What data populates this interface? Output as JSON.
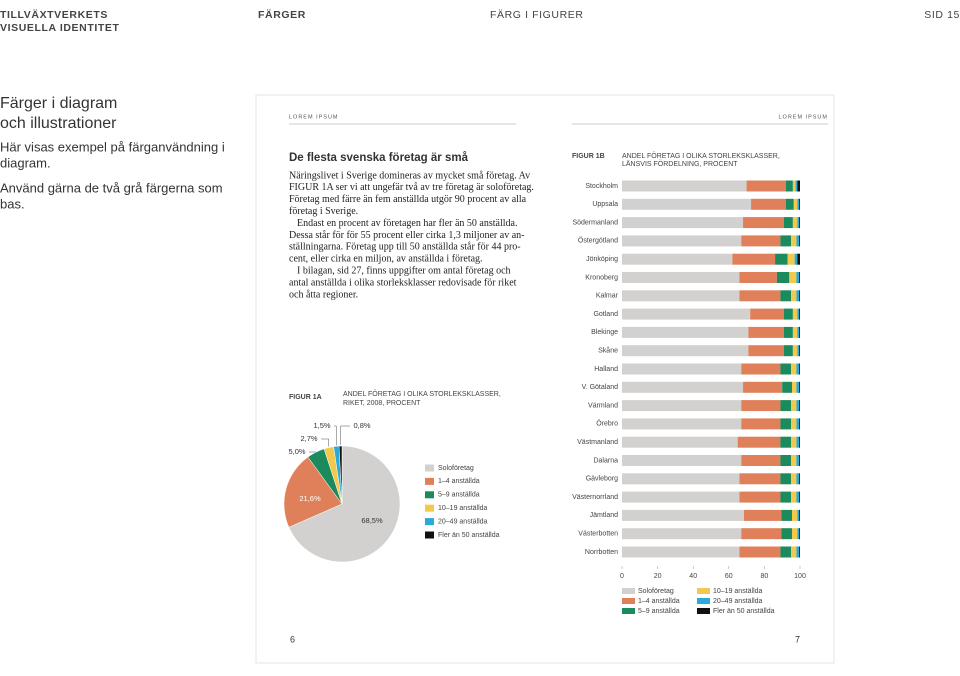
{
  "header": {
    "brand": [
      "TILLVÄXTVERKETS",
      "VISUELLA IDENTITET"
    ],
    "section": "FÄRGER",
    "subsection": "FÄRG I FIGURER",
    "page": "SID 15"
  },
  "intro": {
    "title": [
      "Färger i diagram",
      "och illustrationer"
    ],
    "paragraphs": [
      [
        "Här visas exempel på färganvändning i",
        "diagram."
      ],
      [
        "Använd gärna de två grå färgerna som",
        "bas."
      ]
    ]
  },
  "spread": {
    "running_heads": [
      "LOREM IPSUM",
      "LOREM IPSUM"
    ],
    "article": {
      "title": "De flesta svenska företag är små",
      "paragraphs": [
        [
          "Näringslivet i Sverige domineras av mycket små företag. Av",
          "FIGUR 1A ser vi att ungefär två av tre företag är soloföretag.",
          "Företag med färre än fem anställda utgör 90 procent av alla",
          "företag i Sverige."
        ],
        [
          "Endast en procent av företagen har fler än 50 anställda.",
          "Dessa står för för 55 procent eller cirka 1,3 miljoner av an-",
          "ställningarna. Företag upp till 50 anställda står för 44 pro-",
          "cent, eller cirka en miljon, av anställda i företag."
        ],
        [
          "I bilagan, sid 27, finns uppgifter om antal företag och",
          "antal anställda i olika storleksklasser redovisade för riket",
          "och åtta regioner."
        ]
      ]
    },
    "page_numbers": [
      "6",
      "7"
    ]
  },
  "chart_data": [
    {
      "type": "pie",
      "label": "FIGUR 1A",
      "title": [
        "ANDEL FÖRETAG I OLIKA STORLEKSKLASSER,",
        "RIKET, 2008, PROCENT"
      ],
      "categories": [
        "Soloföretag",
        "1–4 anställda",
        "5–9 anställda",
        "10–19 anställda",
        "20–49 anställda",
        "Fler än 50 anställda"
      ],
      "values": [
        68.5,
        21.6,
        5.0,
        2.7,
        1.5,
        0.8
      ],
      "value_labels": [
        "68,5%",
        "21,6%",
        "5,0%",
        "2,7%",
        "1,5%",
        "0,8%"
      ],
      "colors": [
        "#d2d1d0",
        "#e0805a",
        "#1b8a5c",
        "#f2c94c",
        "#2aaad8",
        "#111111"
      ]
    },
    {
      "type": "stacked-bar",
      "label": "FIGUR 1B",
      "title": [
        "ANDEL FÖRETAG I OLIKA STORLEKSKLASSER,",
        "LÄNSVIS FÖRDELNING, PROCENT"
      ],
      "categories": [
        "Stockholm",
        "Uppsala",
        "Södermanland",
        "Östergötland",
        "Jönköping",
        "Kronoberg",
        "Kalmar",
        "Gotland",
        "Blekinge",
        "Skåne",
        "Halland",
        "V. Götaland",
        "Värmland",
        "Örebro",
        "Västmanland",
        "Dalarna",
        "Gävleborg",
        "Västernorrland",
        "Jämtland",
        "Västerbotten",
        "Norrbotten"
      ],
      "series": [
        {
          "name": "Soloföretag",
          "color": "#d2d1d0",
          "values": [
            70,
            72.5,
            68,
            67,
            62,
            66,
            66,
            72,
            71,
            71,
            67,
            68,
            67,
            67,
            65,
            67,
            66,
            66,
            68.5,
            67,
            66
          ]
        },
        {
          "name": "1–4 anställda",
          "color": "#e0805a",
          "values": [
            22,
            19.5,
            23,
            22,
            24,
            21,
            23,
            19,
            20,
            20,
            22,
            22,
            22,
            22,
            24,
            22,
            23,
            23,
            21,
            22.5,
            23
          ]
        },
        {
          "name": "5–9 anställda",
          "color": "#1b8a5c",
          "values": [
            4,
            4.5,
            5,
            6,
            7,
            7,
            6,
            5,
            5,
            5,
            6,
            5.5,
            6,
            6,
            6,
            6,
            6,
            6,
            6,
            6,
            6
          ]
        },
        {
          "name": "10–19 anställda",
          "color": "#f2c94c",
          "values": [
            1.5,
            2,
            2.5,
            3,
            4,
            4,
            3,
            2.5,
            2.5,
            2.5,
            3,
            2.5,
            3,
            3,
            3,
            3,
            3,
            3,
            3,
            3,
            3
          ]
        },
        {
          "name": "20–49 anställda",
          "color": "#2aaad8",
          "values": [
            1,
            1,
            1,
            1.5,
            1.5,
            1.5,
            1.5,
            1,
            1,
            1,
            1.5,
            1.5,
            1.5,
            1.5,
            1.5,
            1.5,
            1.5,
            1.5,
            1,
            1,
            1.5
          ]
        },
        {
          "name": "Fler än 50 anställda",
          "color": "#111111",
          "values": [
            1.5,
            0.5,
            0.5,
            0.5,
            1.5,
            0.5,
            0.5,
            0.5,
            0.5,
            0.5,
            0.5,
            0.5,
            0.5,
            0.5,
            0.5,
            0.5,
            0.5,
            0.5,
            0.5,
            0.5,
            0.5
          ]
        }
      ],
      "xlim": [
        0,
        100
      ],
      "xticks": [
        0,
        20,
        40,
        60,
        80,
        100
      ]
    }
  ]
}
